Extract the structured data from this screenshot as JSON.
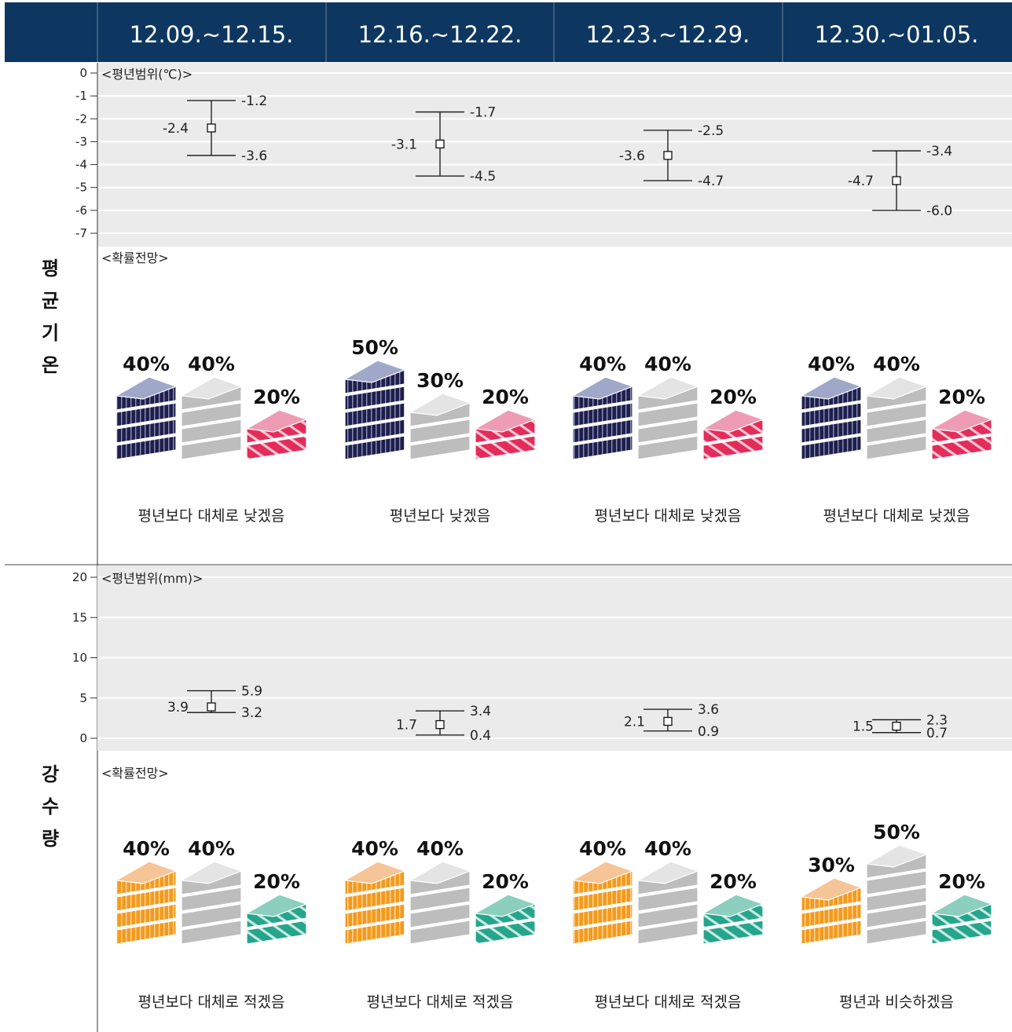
{
  "header": {
    "periods": [
      "12.09.~12.15.",
      "12.16.~12.22.",
      "12.23.~12.29.",
      "12.30.~01.05."
    ]
  },
  "temperature": {
    "side_label": "평균기온",
    "range_label": "<평년범위(℃)>",
    "prob_label": "<확률전망>"
  },
  "precipitation": {
    "side_label": "강수량",
    "range_label": "<평년범위(mm)>",
    "prob_label": "<확률전망>"
  },
  "colors": {
    "header_bg": "#0d3760",
    "header_text": "#ffffff",
    "band_bg": "#ebebeb",
    "temp_below": "#1f1f4d",
    "temp_below_top": "#9fa8c8",
    "temp_normal": "#bdbdbd",
    "temp_normal_top": "#e4e4e4",
    "temp_above": "#e32c5a",
    "temp_above_top": "#ee9cb4",
    "precip_below": "#f39a1e",
    "precip_below_top": "#f6c597",
    "precip_above": "#25a58c",
    "precip_above_top": "#8ccfbe"
  },
  "chart_data": [
    {
      "type": "errorbar",
      "title": "<평년범위(℃)>",
      "categories": [
        "12.09.~12.15.",
        "12.16.~12.22.",
        "12.23.~12.29.",
        "12.30.~01.05."
      ],
      "ylim": [
        -7,
        0
      ],
      "yticks": [
        "0",
        "-1",
        "-2",
        "-3",
        "-4",
        "-5",
        "-6",
        "-7"
      ],
      "mid": [
        -2.4,
        -3.1,
        -3.6,
        -4.7
      ],
      "upper": [
        -1.2,
        -1.7,
        -2.5,
        -3.4
      ],
      "lower": [
        -3.6,
        -4.5,
        -4.7,
        -6.0
      ],
      "mid_labels": [
        "-2.4",
        "-3.1",
        "-3.6",
        "-4.7"
      ],
      "upper_labels": [
        "-1.2",
        "-1.7",
        "-2.5",
        "-3.4"
      ],
      "lower_labels": [
        "-3.6",
        "-4.5",
        "-4.7",
        "-6.0"
      ]
    },
    {
      "type": "bar",
      "title": "<확률전망>",
      "categories": [
        "12.09.~12.15.",
        "12.16.~12.22.",
        "12.23.~12.29.",
        "12.30.~01.05."
      ],
      "series": [
        {
          "values": [
            40,
            50,
            40,
            40
          ]
        },
        {
          "values": [
            40,
            30,
            40,
            40
          ]
        },
        {
          "values": [
            20,
            20,
            20,
            20
          ]
        }
      ],
      "outlook": [
        "평년보다 대체로 낮겠음",
        "평년보다 낮겠음",
        "평년보다 대체로 낮겠음",
        "평년보다 대체로 낮겠음"
      ]
    },
    {
      "type": "errorbar",
      "title": "<평년범위(mm)>",
      "categories": [
        "12.09.~12.15.",
        "12.16.~12.22.",
        "12.23.~12.29.",
        "12.30.~01.05."
      ],
      "ylim": [
        0,
        20
      ],
      "yticks": [
        "20",
        "15",
        "10",
        "5",
        "0"
      ],
      "mid": [
        3.9,
        1.7,
        2.1,
        1.5
      ],
      "upper": [
        5.9,
        3.4,
        3.6,
        2.3
      ],
      "lower": [
        3.2,
        0.4,
        0.9,
        0.7
      ],
      "mid_labels": [
        "3.9",
        "1.7",
        "2.1",
        "1.5"
      ],
      "upper_labels": [
        "5.9",
        "3.4",
        "3.6",
        "2.3"
      ],
      "lower_labels": [
        "3.2",
        "0.4",
        "0.9",
        "0.7"
      ]
    },
    {
      "type": "bar",
      "title": "<확률전망>",
      "categories": [
        "12.09.~12.15.",
        "12.16.~12.22.",
        "12.23.~12.29.",
        "12.30.~01.05."
      ],
      "series": [
        {
          "values": [
            40,
            40,
            40,
            30
          ]
        },
        {
          "values": [
            40,
            40,
            40,
            50
          ]
        },
        {
          "values": [
            20,
            20,
            20,
            20
          ]
        }
      ],
      "outlook": [
        "평년보다 대체로 적겠음",
        "평년보다 대체로 적겠음",
        "평년보다 대체로 적겠음",
        "평년과 비슷하겠음"
      ]
    }
  ]
}
